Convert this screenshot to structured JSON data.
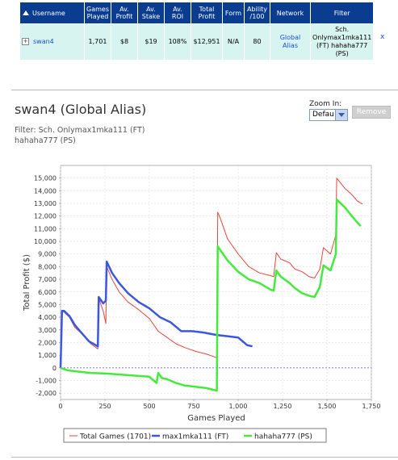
{
  "table": {
    "headers": [
      "Username",
      "Games Played",
      "Av. Profit",
      "Av. Stake",
      "Av. ROI",
      "Total Profit",
      "Form",
      "Ability /100",
      "Network",
      "Filter"
    ],
    "row": {
      "expander": "+",
      "username": "swan4",
      "games_played": "1,701",
      "av_profit": "$8",
      "av_stake": "$19",
      "av_roi": "108%",
      "total_profit": "$12,951",
      "form": "N/A",
      "ability": "80",
      "network": "Global Alias",
      "filter": "Sch. Onlymax1mka111 (FT) hahaha777 (PS)",
      "remove": "x"
    }
  },
  "chart_header": {
    "title": "swan4 (Global Alias)",
    "filter_text": "Filter: Sch. Onlymax1mka111 (FT)\nhahaha777 (PS)",
    "zoom_label": "Zoom In:",
    "zoom_value": "Defau",
    "remove_button": "Remove"
  },
  "chart_data": {
    "type": "line",
    "xlabel": "Games Played",
    "ylabel": "Total Profit ($)",
    "xlim": [
      0,
      1750
    ],
    "ylim": [
      -2500,
      16000
    ],
    "x_ticks": [
      0,
      250,
      500,
      750,
      1000,
      1250,
      1500,
      1750
    ],
    "x_tick_labels": [
      "0",
      "250",
      "500",
      "750",
      "1,000",
      "1,250",
      "1,500",
      "1,750"
    ],
    "y_ticks": [
      -2000,
      -1000,
      0,
      1000,
      2000,
      3000,
      4000,
      5000,
      6000,
      7000,
      8000,
      9000,
      10000,
      11000,
      12000,
      13000,
      14000,
      15000
    ],
    "y_tick_labels": [
      "-2,000",
      "-1,000",
      "0",
      "1,000",
      "2,000",
      "3,000",
      "4,000",
      "5,000",
      "6,000",
      "7,000",
      "8,000",
      "9,000",
      "10,000",
      "11,000",
      "12,000",
      "13,000",
      "14,000",
      "15,000"
    ],
    "grid": true,
    "zero_line": true,
    "series": [
      {
        "name": "Total Games (1701)",
        "color": "#e8453c",
        "width": 1,
        "points": [
          [
            0,
            0
          ],
          [
            8,
            4500
          ],
          [
            20,
            4400
          ],
          [
            50,
            4000
          ],
          [
            80,
            3200
          ],
          [
            120,
            2700
          ],
          [
            170,
            1900
          ],
          [
            210,
            1500
          ],
          [
            215,
            5500
          ],
          [
            240,
            4500
          ],
          [
            255,
            3500
          ],
          [
            260,
            8000
          ],
          [
            290,
            7000
          ],
          [
            330,
            6000
          ],
          [
            380,
            5200
          ],
          [
            440,
            4600
          ],
          [
            500,
            3900
          ],
          [
            550,
            2900
          ],
          [
            600,
            2400
          ],
          [
            650,
            1900
          ],
          [
            700,
            1600
          ],
          [
            760,
            1300
          ],
          [
            820,
            1100
          ],
          [
            880,
            800
          ],
          [
            885,
            12300
          ],
          [
            900,
            11800
          ],
          [
            940,
            10200
          ],
          [
            1000,
            9000
          ],
          [
            1060,
            8000
          ],
          [
            1120,
            7500
          ],
          [
            1180,
            7300
          ],
          [
            1200,
            7200
          ],
          [
            1215,
            9100
          ],
          [
            1240,
            8600
          ],
          [
            1290,
            8300
          ],
          [
            1320,
            7800
          ],
          [
            1360,
            7600
          ],
          [
            1400,
            7200
          ],
          [
            1430,
            7100
          ],
          [
            1460,
            7800
          ],
          [
            1480,
            9500
          ],
          [
            1520,
            9000
          ],
          [
            1550,
            10500
          ],
          [
            1555,
            15000
          ],
          [
            1600,
            14200
          ],
          [
            1640,
            13700
          ],
          [
            1670,
            13200
          ],
          [
            1700,
            12951
          ]
        ]
      },
      {
        "name": "max1mka111 (FT)",
        "color": "#3b56e0",
        "width": 2.5,
        "points": [
          [
            0,
            0
          ],
          [
            8,
            4500
          ],
          [
            20,
            4500
          ],
          [
            50,
            4100
          ],
          [
            80,
            3400
          ],
          [
            110,
            2900
          ],
          [
            160,
            2100
          ],
          [
            210,
            1700
          ],
          [
            215,
            5600
          ],
          [
            240,
            5100
          ],
          [
            255,
            5300
          ],
          [
            260,
            8400
          ],
          [
            290,
            7500
          ],
          [
            330,
            6700
          ],
          [
            380,
            5900
          ],
          [
            440,
            5200
          ],
          [
            500,
            4700
          ],
          [
            560,
            4000
          ],
          [
            620,
            3600
          ],
          [
            680,
            2900
          ],
          [
            740,
            2900
          ],
          [
            800,
            2800
          ],
          [
            880,
            2600
          ],
          [
            940,
            2500
          ],
          [
            1000,
            2400
          ],
          [
            1050,
            1800
          ],
          [
            1080,
            1700
          ]
        ]
      },
      {
        "name": "hahaha777 (PS)",
        "color": "#44ea3c",
        "width": 2.5,
        "points": [
          [
            0,
            0
          ],
          [
            40,
            -200
          ],
          [
            100,
            -300
          ],
          [
            170,
            -400
          ],
          [
            260,
            -450
          ],
          [
            350,
            -550
          ],
          [
            450,
            -650
          ],
          [
            500,
            -700
          ],
          [
            540,
            -1200
          ],
          [
            550,
            -400
          ],
          [
            570,
            -800
          ],
          [
            600,
            -900
          ],
          [
            650,
            -1200
          ],
          [
            700,
            -1400
          ],
          [
            760,
            -1500
          ],
          [
            820,
            -1600
          ],
          [
            880,
            -1800
          ],
          [
            885,
            9600
          ],
          [
            900,
            9300
          ],
          [
            940,
            8500
          ],
          [
            1000,
            7600
          ],
          [
            1060,
            7000
          ],
          [
            1120,
            6700
          ],
          [
            1180,
            6200
          ],
          [
            1200,
            6100
          ],
          [
            1215,
            7700
          ],
          [
            1240,
            7200
          ],
          [
            1290,
            6700
          ],
          [
            1320,
            6300
          ],
          [
            1360,
            5900
          ],
          [
            1400,
            5700
          ],
          [
            1430,
            5600
          ],
          [
            1460,
            6400
          ],
          [
            1480,
            8100
          ],
          [
            1520,
            7700
          ],
          [
            1550,
            9000
          ],
          [
            1555,
            13300
          ],
          [
            1600,
            12700
          ],
          [
            1640,
            12000
          ],
          [
            1670,
            11500
          ],
          [
            1690,
            11200
          ]
        ]
      }
    ],
    "legend_position": "bottom"
  }
}
